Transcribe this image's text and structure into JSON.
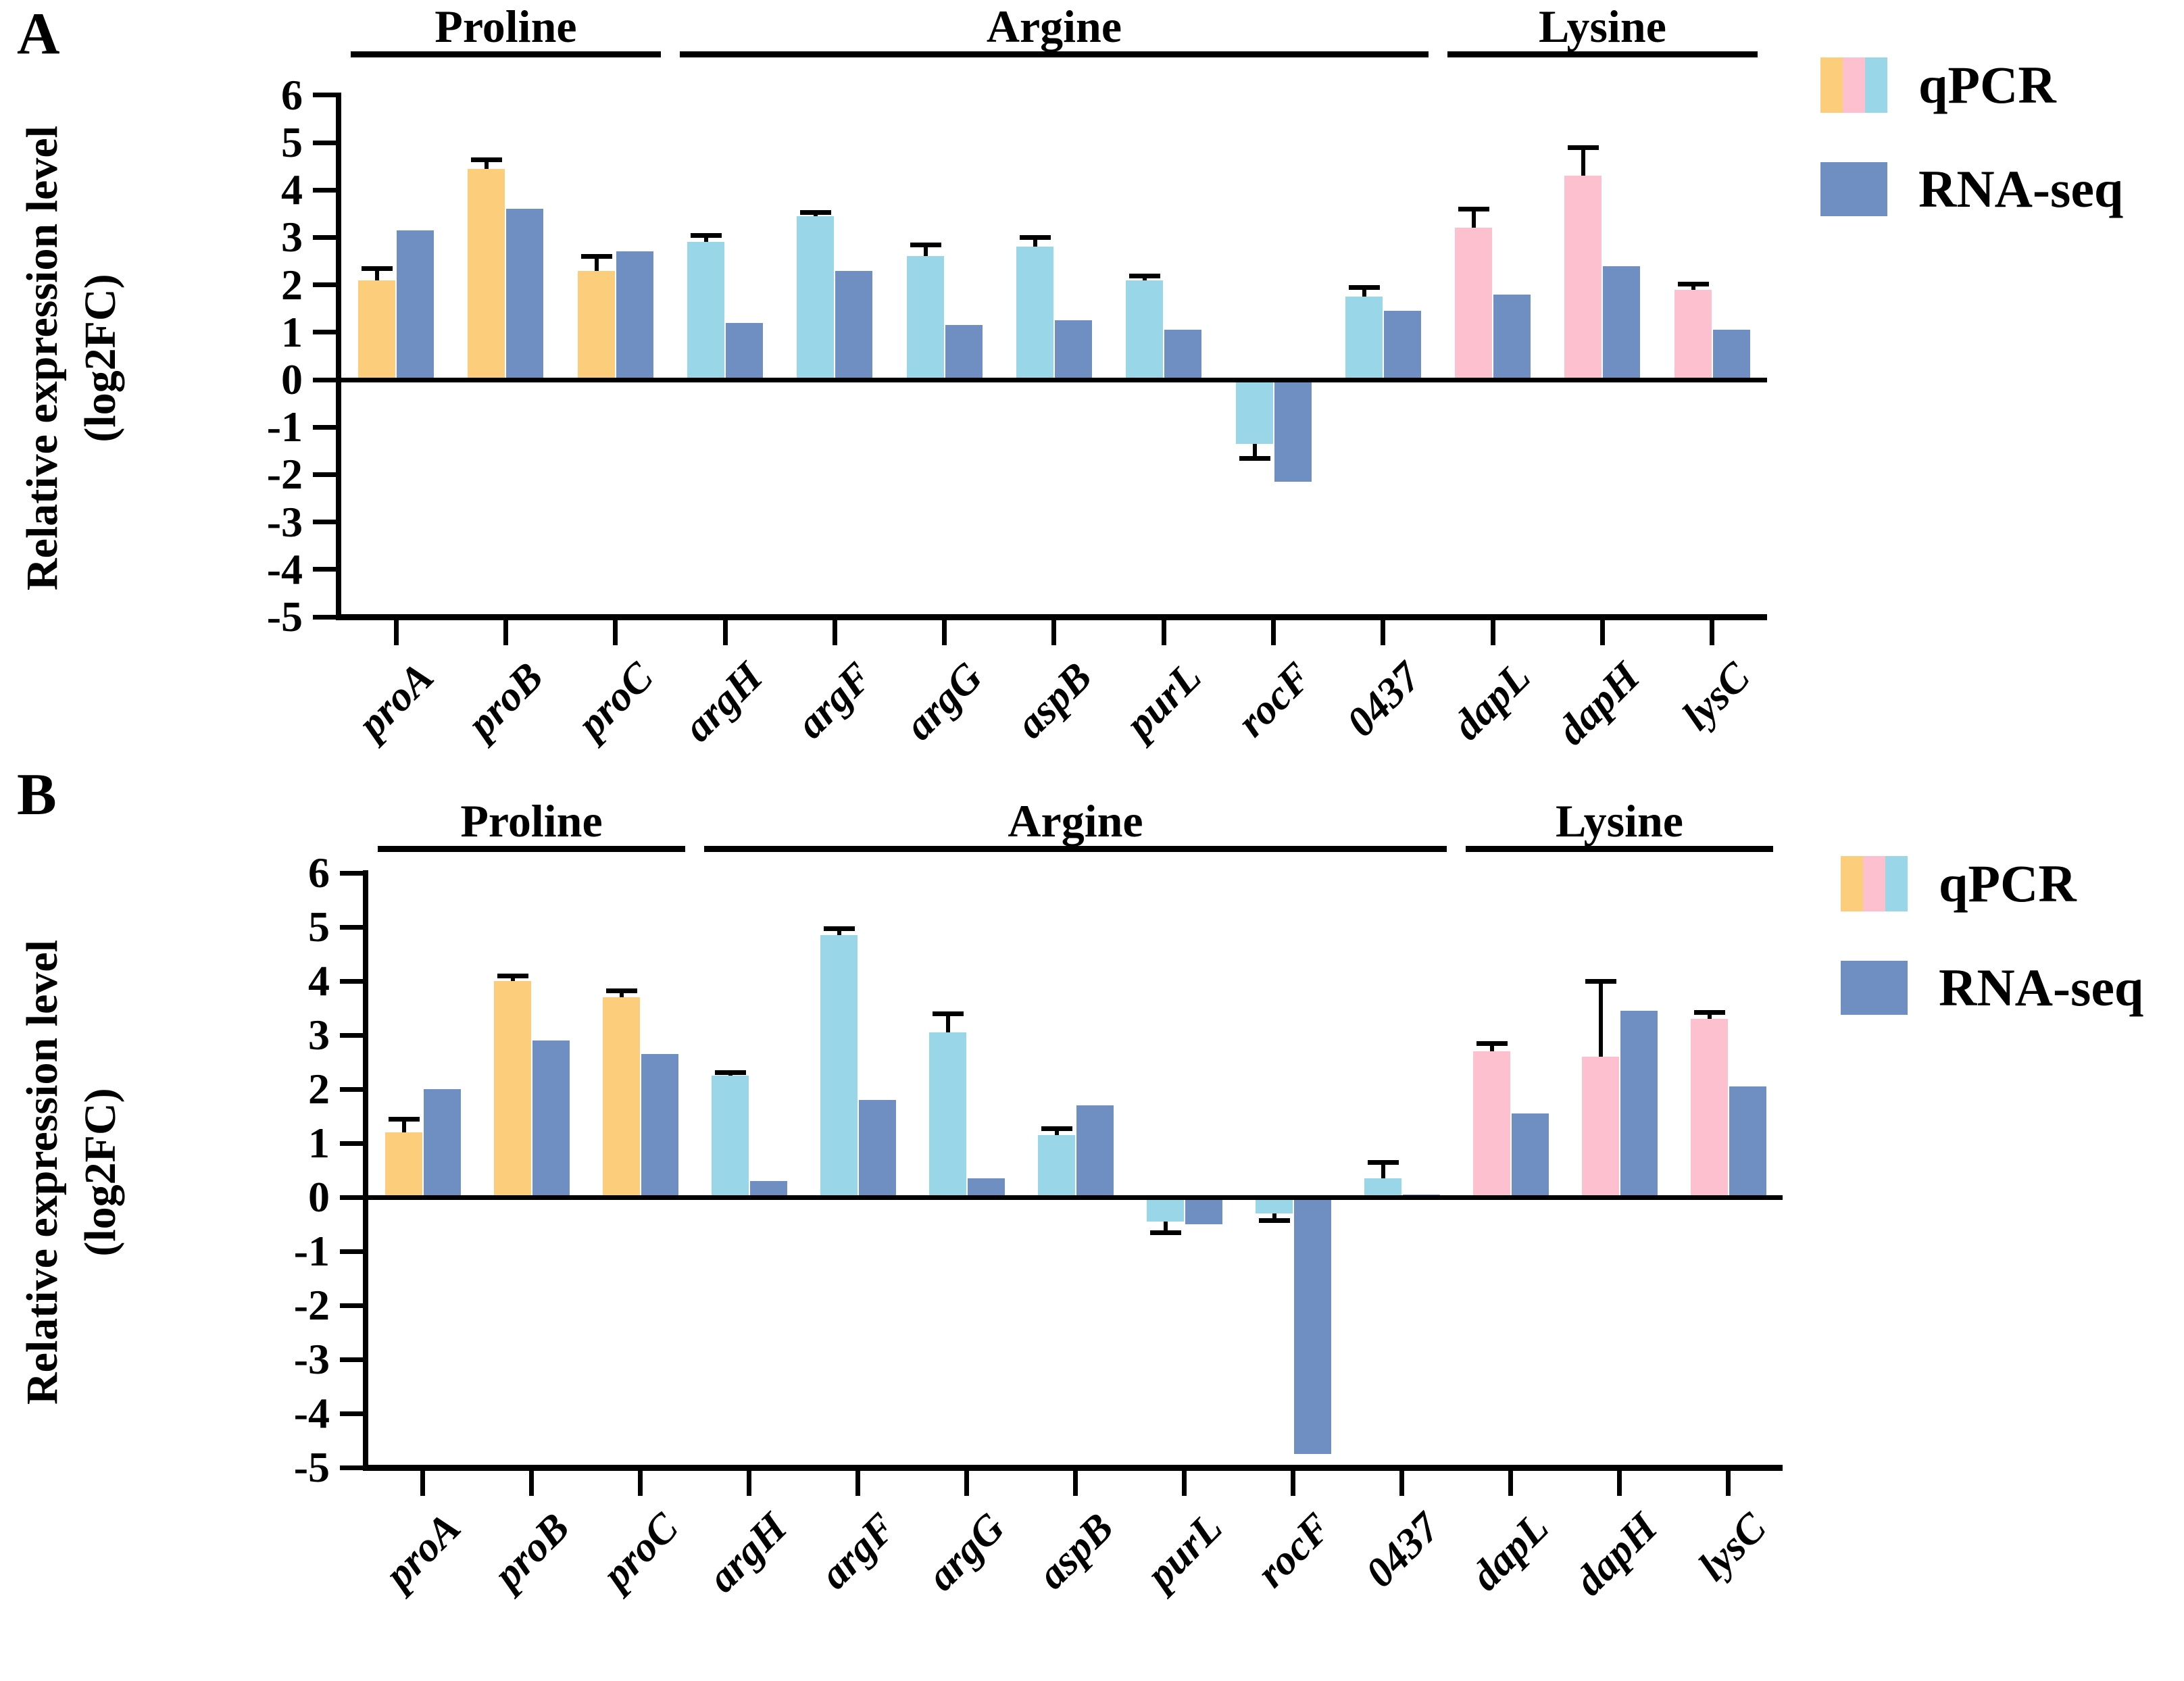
{
  "colors": {
    "qpcr_proline": "#FCCD7B",
    "qpcr_arginine": "#99D6E7",
    "qpcr_lysine": "#FDC0CE",
    "rnaseq": "#6F8EC1",
    "axis": "#000000"
  },
  "legend": {
    "qpcr_label": "qPCR",
    "rnaseq_label": "RNA-seq"
  },
  "chart_data": [
    {
      "panel": "A",
      "type": "bar",
      "ylabel_line1": "Relative expression level",
      "ylabel_line2": "(log2FC)",
      "ylim": [
        -5,
        6
      ],
      "yticks": [
        6,
        5,
        4,
        3,
        2,
        1,
        0,
        -1,
        -2,
        -3,
        -4,
        -5
      ],
      "categories": [
        "proA",
        "proB",
        "proC",
        "argH",
        "argF",
        "argG",
        "aspB",
        "purL",
        "rocF",
        "0437",
        "dapL",
        "dapH",
        "lysC"
      ],
      "groups": [
        {
          "label": "Proline",
          "from": 0,
          "to": 2,
          "color_key": "qpcr_proline"
        },
        {
          "label": "Argine",
          "from": 3,
          "to": 9,
          "color_key": "qpcr_arginine"
        },
        {
          "label": "Lysine",
          "from": 10,
          "to": 12,
          "color_key": "qpcr_lysine"
        }
      ],
      "series": [
        {
          "name": "qPCR",
          "values": [
            2.1,
            4.45,
            2.3,
            2.9,
            3.45,
            2.6,
            2.8,
            2.1,
            -1.35,
            1.75,
            3.2,
            4.3,
            1.9
          ],
          "errors": [
            0.25,
            0.2,
            0.3,
            0.15,
            0.08,
            0.25,
            0.2,
            0.1,
            0.3,
            0.2,
            0.4,
            0.6,
            0.12
          ]
        },
        {
          "name": "RNA-seq",
          "values": [
            3.15,
            3.6,
            2.7,
            1.2,
            2.3,
            1.15,
            1.25,
            1.05,
            -2.15,
            1.45,
            1.8,
            2.4,
            1.05
          ]
        }
      ]
    },
    {
      "panel": "B",
      "type": "bar",
      "ylabel_line1": "Relative expression level",
      "ylabel_line2": "(log2FC)",
      "ylim": [
        -5,
        6
      ],
      "yticks": [
        6,
        5,
        4,
        3,
        2,
        1,
        0,
        -1,
        -2,
        -3,
        -4,
        -5
      ],
      "categories": [
        "proA",
        "proB",
        "proC",
        "argH",
        "argF",
        "argG",
        "aspB",
        "purL",
        "rocF",
        "0437",
        "dapL",
        "dapH",
        "lysC"
      ],
      "groups": [
        {
          "label": "Proline",
          "from": 0,
          "to": 2,
          "color_key": "qpcr_proline"
        },
        {
          "label": "Argine",
          "from": 3,
          "to": 9,
          "color_key": "qpcr_arginine"
        },
        {
          "label": "Lysine",
          "from": 10,
          "to": 12,
          "color_key": "qpcr_lysine"
        }
      ],
      "series": [
        {
          "name": "qPCR",
          "values": [
            1.2,
            4.0,
            3.7,
            2.25,
            4.85,
            3.05,
            1.15,
            -0.45,
            -0.3,
            0.35,
            2.7,
            2.6,
            3.3
          ],
          "errors": [
            0.25,
            0.1,
            0.12,
            0.06,
            0.12,
            0.35,
            0.12,
            0.2,
            0.12,
            0.3,
            0.15,
            1.4,
            0.12
          ]
        },
        {
          "name": "RNA-seq",
          "values": [
            2.0,
            2.9,
            2.65,
            0.3,
            1.8,
            0.35,
            1.7,
            -0.5,
            -4.75,
            0.05,
            1.55,
            3.45,
            2.05
          ]
        }
      ]
    }
  ]
}
